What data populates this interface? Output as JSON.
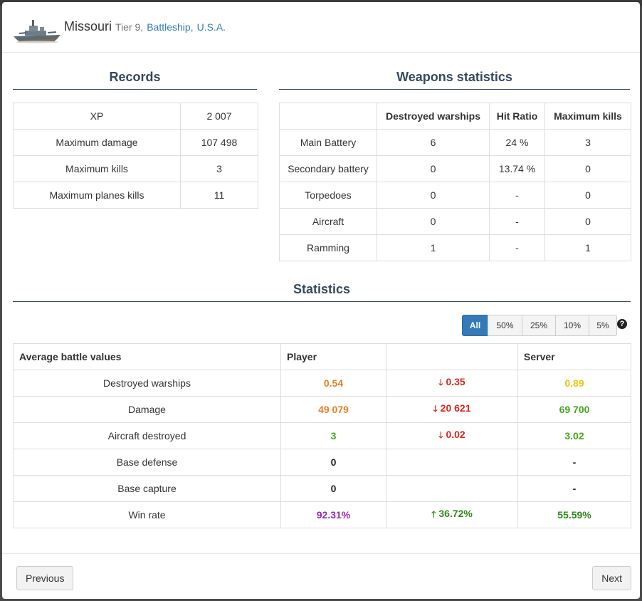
{
  "header": {
    "ship_name": "Missouri",
    "tier": "Tier 9,",
    "ship_class": "Battleship",
    "separator": ",",
    "nation": "U.S.A."
  },
  "records": {
    "title": "Records",
    "rows": [
      {
        "label": "XP",
        "value": "2 007"
      },
      {
        "label": "Maximum damage",
        "value": "107 498"
      },
      {
        "label": "Maximum kills",
        "value": "3"
      },
      {
        "label": "Maximum planes kills",
        "value": "11"
      }
    ]
  },
  "weapons": {
    "title": "Weapons statistics",
    "headers": [
      "",
      "Destroyed warships",
      "Hit Ratio",
      "Maximum kills"
    ],
    "rows": [
      {
        "weapon": "Main Battery",
        "destroyed": "6",
        "hit_ratio": "24 %",
        "max_kills": "3"
      },
      {
        "weapon": "Secondary battery",
        "destroyed": "0",
        "hit_ratio": "13.74 %",
        "max_kills": "0"
      },
      {
        "weapon": "Torpedoes",
        "destroyed": "0",
        "hit_ratio": "-",
        "max_kills": "0"
      },
      {
        "weapon": "Aircraft",
        "destroyed": "0",
        "hit_ratio": "-",
        "max_kills": "0"
      },
      {
        "weapon": "Ramming",
        "destroyed": "1",
        "hit_ratio": "-",
        "max_kills": "1"
      }
    ]
  },
  "statistics": {
    "title": "Statistics",
    "filters": [
      "All",
      "50%",
      "25%",
      "10%",
      "5%"
    ],
    "active_filter": "All",
    "help_icon": "?",
    "headers": {
      "label": "Average battle values",
      "player": "Player",
      "diff": "",
      "server": "Server"
    },
    "rows": [
      {
        "label": "Destroyed warships",
        "player": "0.54",
        "diff_arrow": "🡓",
        "diff": "0.35",
        "server": "0.89"
      },
      {
        "label": "Damage",
        "player": "49 079",
        "diff_arrow": "🡓",
        "diff": "20 621",
        "server": "69 700"
      },
      {
        "label": "Aircraft destroyed",
        "player": "3",
        "diff_arrow": "🡓",
        "diff": "0.02",
        "server": "3.02"
      },
      {
        "label": "Base defense",
        "player": "0",
        "diff_arrow": "",
        "diff": "",
        "server": "-"
      },
      {
        "label": "Base capture",
        "player": "0",
        "diff_arrow": "",
        "diff": "",
        "server": "-"
      },
      {
        "label": "Win rate",
        "player": "92.31%",
        "diff_arrow": "🡑",
        "diff": "36.72%",
        "server": "55.59%"
      }
    ]
  },
  "footer": {
    "previous_label": "Previous",
    "next_label": "Next"
  },
  "colors": {
    "accent": "#337ab7",
    "section_title": "#34495e",
    "orange": "#e67e22",
    "yellow": "#f1c40f",
    "green": "#44a61c",
    "purple": "#9b27af",
    "red": "#d9261c"
  }
}
